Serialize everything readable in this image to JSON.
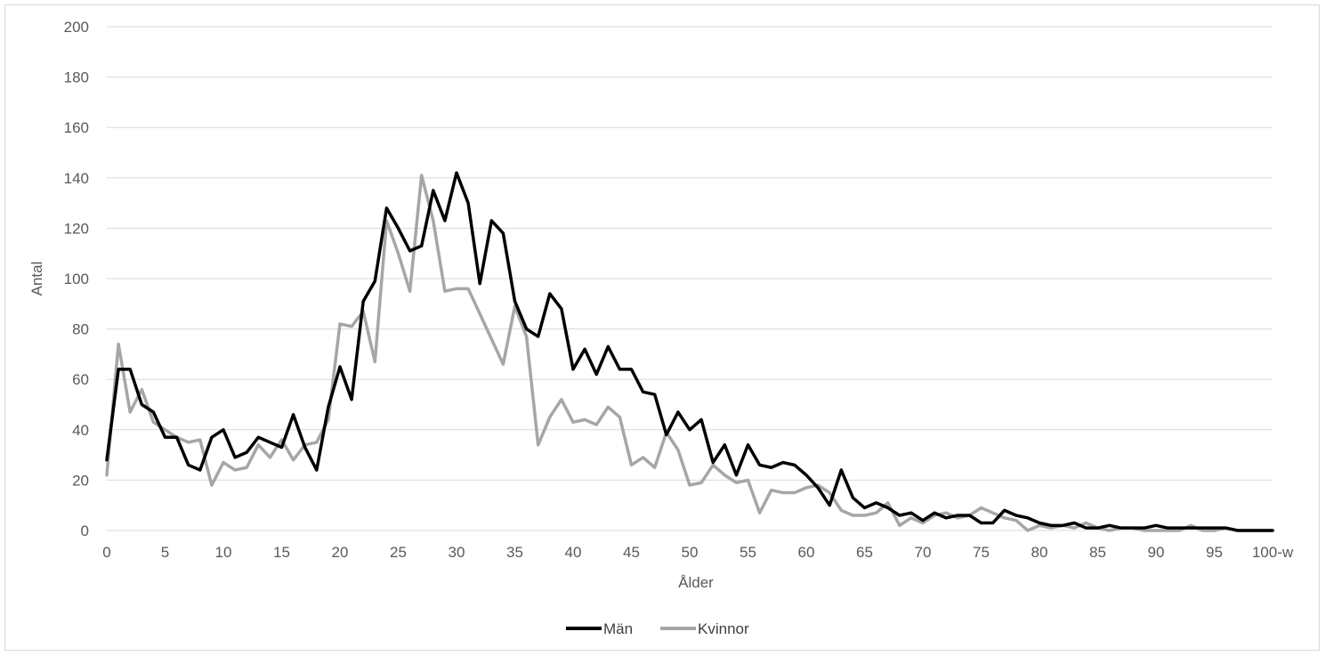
{
  "chart_data": {
    "type": "line",
    "title": "",
    "xlabel": "Ålder",
    "ylabel": "Antal",
    "ylim": [
      0,
      200
    ],
    "yticks": [
      0,
      20,
      40,
      60,
      80,
      100,
      120,
      140,
      160,
      180,
      200
    ],
    "xtick_labels": [
      "0",
      "5",
      "10",
      "15",
      "20",
      "25",
      "30",
      "35",
      "40",
      "45",
      "50",
      "55",
      "60",
      "65",
      "70",
      "75",
      "80",
      "85",
      "90",
      "95",
      "100-w"
    ],
    "grid": true,
    "legend_position": "bottom",
    "x": [
      0,
      1,
      2,
      3,
      4,
      5,
      6,
      7,
      8,
      9,
      10,
      11,
      12,
      13,
      14,
      15,
      16,
      17,
      18,
      19,
      20,
      21,
      22,
      23,
      24,
      25,
      26,
      27,
      28,
      29,
      30,
      31,
      32,
      33,
      34,
      35,
      36,
      37,
      38,
      39,
      40,
      41,
      42,
      43,
      44,
      45,
      46,
      47,
      48,
      49,
      50,
      51,
      52,
      53,
      54,
      55,
      56,
      57,
      58,
      59,
      60,
      61,
      62,
      63,
      64,
      65,
      66,
      67,
      68,
      69,
      70,
      71,
      72,
      73,
      74,
      75,
      76,
      77,
      78,
      79,
      80,
      81,
      82,
      83,
      84,
      85,
      86,
      87,
      88,
      89,
      90,
      91,
      92,
      93,
      94,
      95,
      96,
      97,
      98,
      99,
      100
    ],
    "series": [
      {
        "name": "Män",
        "color": "#000000",
        "values": [
          28,
          64,
          64,
          50,
          47,
          37,
          37,
          26,
          24,
          37,
          40,
          29,
          31,
          37,
          35,
          33,
          46,
          33,
          24,
          49,
          65,
          52,
          91,
          99,
          128,
          120,
          111,
          113,
          135,
          123,
          142,
          130,
          98,
          123,
          118,
          91,
          80,
          77,
          94,
          88,
          64,
          72,
          62,
          73,
          64,
          64,
          55,
          54,
          38,
          47,
          40,
          44,
          27,
          34,
          22,
          34,
          26,
          25,
          27,
          26,
          22,
          17,
          10,
          24,
          13,
          9,
          11,
          9,
          6,
          7,
          4,
          7,
          5,
          6,
          6,
          3,
          3,
          8,
          6,
          5,
          3,
          2,
          2,
          3,
          1,
          1,
          2,
          1,
          1,
          1,
          2,
          1,
          1,
          1,
          1,
          1,
          1,
          0,
          0,
          0,
          0
        ]
      },
      {
        "name": "Kvinnor",
        "color": "#a6a6a6",
        "values": [
          22,
          74,
          47,
          56,
          43,
          40,
          37,
          35,
          36,
          18,
          27,
          24,
          25,
          34,
          29,
          36,
          28,
          34,
          35,
          44,
          82,
          81,
          87,
          67,
          123,
          110,
          95,
          141,
          123,
          95,
          96,
          96,
          86,
          76,
          66,
          89,
          77,
          34,
          45,
          52,
          43,
          44,
          42,
          49,
          45,
          26,
          29,
          25,
          39,
          32,
          18,
          19,
          26,
          22,
          19,
          20,
          7,
          16,
          15,
          15,
          17,
          18,
          15,
          8,
          6,
          6,
          7,
          11,
          2,
          5,
          3,
          6,
          7,
          5,
          6,
          9,
          7,
          5,
          4,
          0,
          2,
          1,
          2,
          1,
          3,
          1,
          0,
          1,
          1,
          0,
          0,
          0,
          0,
          2,
          0,
          0,
          1,
          0,
          0,
          0,
          0
        ]
      }
    ]
  }
}
